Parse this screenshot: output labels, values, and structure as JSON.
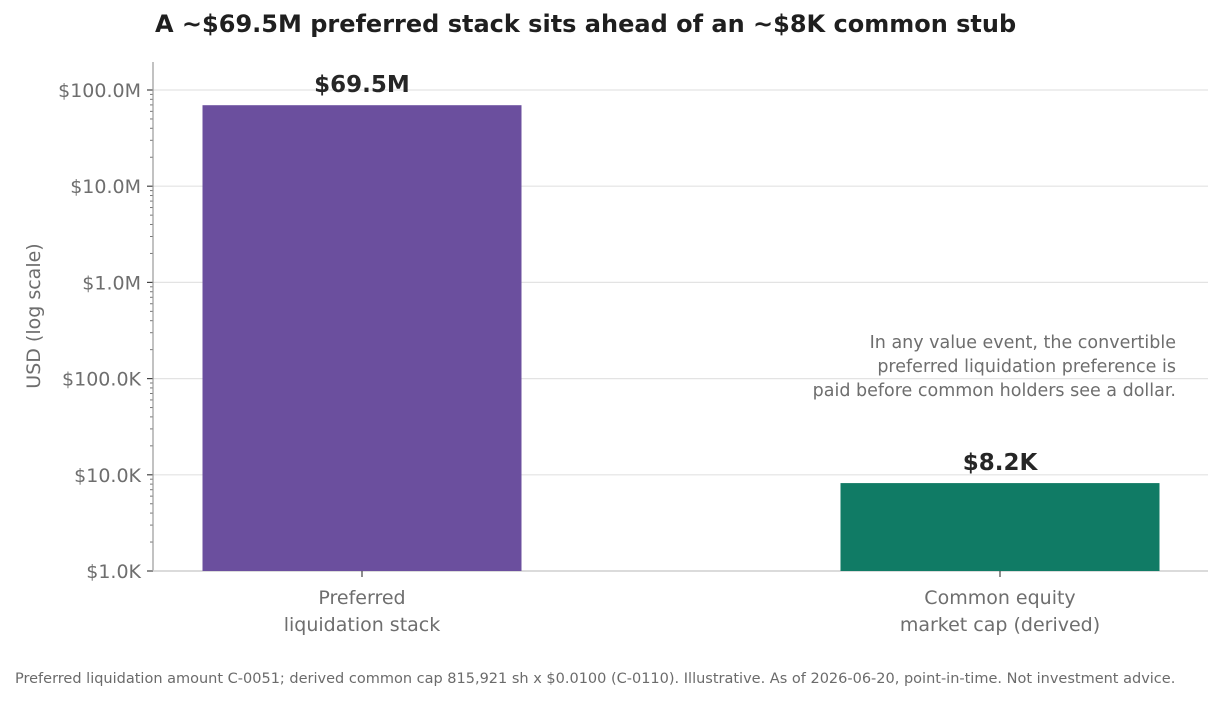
{
  "title": "A ~$69.5M preferred stack sits ahead of an ~$8K common stub",
  "footer": "Preferred liquidation amount C-0051; derived common cap 815,921 sh x $0.0100 (C-0110). Illustrative. As of 2026-06-20, point-in-time. Not investment advice.",
  "chart_data": {
    "type": "bar",
    "scale": "log",
    "categories": [
      [
        "Preferred",
        "liquidation stack"
      ],
      [
        "Common equity",
        "market cap (derived)"
      ]
    ],
    "values": [
      69500000,
      8200
    ],
    "data_labels": [
      "$69.5M",
      "$8.2K"
    ],
    "colors": [
      "#6b4f9e",
      "#107b65"
    ],
    "ylabel": "USD (log scale)",
    "ylim": [
      1000,
      100000000
    ],
    "yticks": [
      1000,
      10000,
      100000,
      1000000,
      10000000,
      100000000
    ],
    "ytick_labels": [
      "$1.0K",
      "$10.0K",
      "$100.0K",
      "$1.0M",
      "$10.0M",
      "$100.0M"
    ],
    "grid": true,
    "annotation": [
      "In any value event, the convertible",
      "preferred liquidation preference is",
      "paid before common holders see a dollar."
    ]
  }
}
